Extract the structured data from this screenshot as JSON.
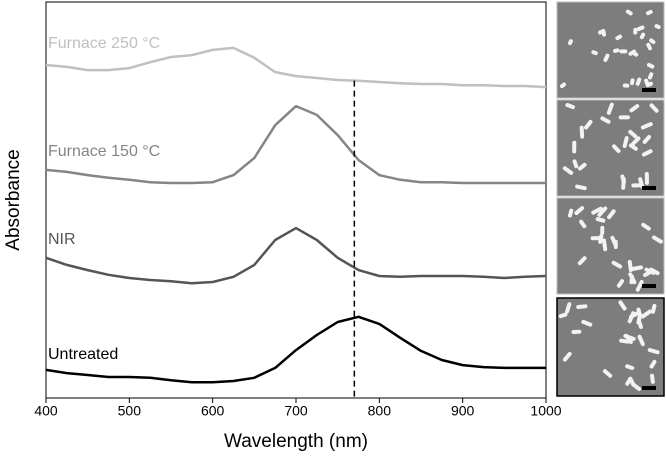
{
  "chart_data": {
    "type": "line",
    "xlabel": "Wavelength (nm)",
    "ylabel": "Absorbance",
    "x": [
      400,
      425,
      450,
      475,
      500,
      525,
      550,
      575,
      600,
      625,
      650,
      675,
      700,
      725,
      750,
      775,
      800,
      825,
      850,
      875,
      900,
      925,
      950,
      975,
      1000
    ],
    "series": [
      {
        "name": "Furnace 250 °C",
        "color": "#c0c0c0",
        "values": [
          8.41,
          8.36,
          8.28,
          8.28,
          8.33,
          8.48,
          8.61,
          8.66,
          8.79,
          8.84,
          8.59,
          8.23,
          8.13,
          8.08,
          8.03,
          8.01,
          7.98,
          7.95,
          7.93,
          7.93,
          7.9,
          7.9,
          7.88,
          7.88,
          7.85
        ]
      },
      {
        "name": "Furnace 150 °C",
        "color": "#858585",
        "values": [
          5.76,
          5.71,
          5.63,
          5.56,
          5.51,
          5.45,
          5.43,
          5.43,
          5.45,
          5.63,
          6.06,
          6.89,
          7.37,
          7.15,
          6.64,
          6.01,
          5.63,
          5.51,
          5.45,
          5.45,
          5.43,
          5.43,
          5.43,
          5.43,
          5.43
        ]
      },
      {
        "name": "NIR",
        "color": "#555555",
        "values": [
          3.54,
          3.36,
          3.23,
          3.11,
          3.03,
          2.98,
          2.95,
          2.9,
          2.93,
          3.06,
          3.36,
          3.99,
          4.29,
          3.99,
          3.54,
          3.23,
          3.08,
          3.06,
          3.08,
          3.08,
          3.08,
          3.06,
          3.03,
          3.06,
          3.08
        ]
      },
      {
        "name": "Untreated",
        "color": "#000000",
        "values": [
          0.71,
          0.63,
          0.58,
          0.53,
          0.53,
          0.51,
          0.45,
          0.4,
          0.4,
          0.43,
          0.51,
          0.76,
          1.21,
          1.59,
          1.92,
          2.05,
          1.87,
          1.52,
          1.19,
          0.96,
          0.83,
          0.78,
          0.76,
          0.76,
          0.76
        ]
      }
    ],
    "reference_line_x": 770,
    "xlim": [
      400,
      1000
    ],
    "xticks": [
      400,
      500,
      600,
      700,
      800,
      900,
      1000
    ],
    "ylim": [
      0,
      10
    ]
  }
}
